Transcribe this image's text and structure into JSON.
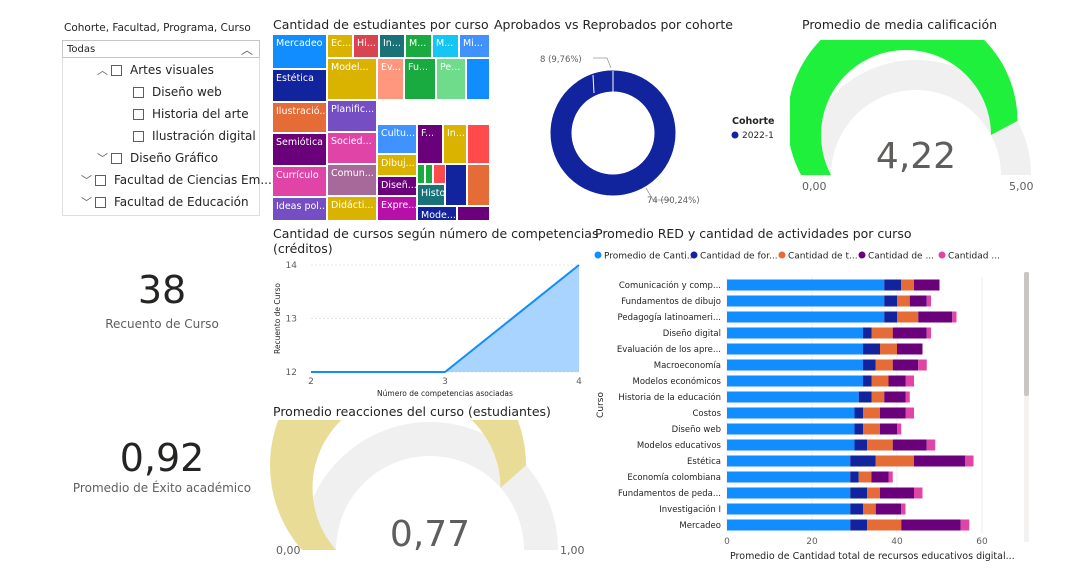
{
  "slicer": {
    "title": "Cohorte, Facultad, Programa, Curso",
    "selected": "Todas",
    "items": [
      {
        "label": "Artes visuales",
        "level": 2,
        "arrow": "^"
      },
      {
        "label": "Diseño web",
        "level": 3,
        "arrow": ""
      },
      {
        "label": "Historia del arte",
        "level": 3,
        "arrow": ""
      },
      {
        "label": "Ilustración digital",
        "level": 3,
        "arrow": ""
      },
      {
        "label": "Diseño Gráfico",
        "level": 2,
        "arrow": "v"
      },
      {
        "label": "Facultad de Ciencias Em...",
        "level": 1,
        "arrow": "v"
      },
      {
        "label": "Facultad de Educación",
        "level": 1,
        "arrow": "v"
      }
    ]
  },
  "cards": {
    "cursos": {
      "value": "38",
      "label": "Recuento de Curso"
    },
    "exito": {
      "value": "0,92",
      "label": "Promedio de Éxito académico"
    }
  },
  "treemap": {
    "title": "Cantidad de estudiantes por curso",
    "tiles": [
      {
        "label": "Mercadeo",
        "color": "#118DFF"
      },
      {
        "label": "Ec...",
        "color": "#D9B300"
      },
      {
        "label": "Hi...",
        "color": "#D64550"
      },
      {
        "label": "In...",
        "color": "#197278"
      },
      {
        "label": "M...",
        "color": "#1AAB40"
      },
      {
        "label": "M...",
        "color": "#15C6F4"
      },
      {
        "label": "Mi...",
        "color": "#4092FF"
      },
      {
        "label": "Estética",
        "color": "#12239E"
      },
      {
        "label": "Model...",
        "color": "#D9B300"
      },
      {
        "label": "Ev...",
        "color": "#FF977E"
      },
      {
        "label": "Fu...",
        "color": "#1AAB40"
      },
      {
        "label": "Pe...",
        "color": "#6FDC8C"
      },
      {
        "label": "",
        "color": "#118DFF"
      },
      {
        "label": "Ilustració...",
        "color": "#E66C37"
      },
      {
        "label": "Planific...",
        "color": "#744EC2"
      },
      {
        "label": "Semiótica",
        "color": "#6B007B"
      },
      {
        "label": "Socied...",
        "color": "#E044A7"
      },
      {
        "label": "Cultu...",
        "color": "#4092FF"
      },
      {
        "label": "F...",
        "color": "#6B007B"
      },
      {
        "label": "In...",
        "color": "#D9B300"
      },
      {
        "label": "",
        "color": "#FF4B4B"
      },
      {
        "label": "Currículo",
        "color": "#E044A7"
      },
      {
        "label": "Comun...",
        "color": "#A66999"
      },
      {
        "label": "Dibuj...",
        "color": "#D9B300"
      },
      {
        "label": "",
        "color": "#1AAB40"
      },
      {
        "label": "",
        "color": "#1AAB40"
      },
      {
        "label": "",
        "color": "#FF4B4B"
      },
      {
        "label": "Diseñ...",
        "color": "#6B007B"
      },
      {
        "label": "Histor...",
        "color": "#197278"
      },
      {
        "label": "",
        "color": "#12239E"
      },
      {
        "label": "",
        "color": "#E66C37"
      },
      {
        "label": "Ideas pol...",
        "color": "#744EC2"
      },
      {
        "label": "Didácti...",
        "color": "#D9B300"
      },
      {
        "label": "Expre...",
        "color": "#B80FA8"
      },
      {
        "label": "Mode...",
        "color": "#12239E"
      },
      {
        "label": "",
        "color": "#6B007B"
      }
    ]
  },
  "donut": {
    "title": "Aprobados vs Reprobados por cohorte",
    "legend_title": "Cohorte",
    "legend_item": "2022-1",
    "label_small": "8 (9,76%)",
    "label_large": "74 (90,24%)",
    "colors": {
      "main": "#12239E",
      "small": "#12239E"
    }
  },
  "gauge_calif": {
    "title": "Promedio de media calificación",
    "value": "4,22",
    "min": "0,00",
    "max": "5,00",
    "fraction": 0.844,
    "fill": "#1EF03C",
    "track": "#F0F0F0"
  },
  "line_chart": {
    "title_line1": "Cantidad de cursos según número de competencias",
    "title_line2": "(créditos)",
    "chart_data": {
      "type": "area",
      "x": [
        2,
        3,
        4
      ],
      "y": [
        12,
        12,
        14
      ],
      "xlabel": "Número de competencias asociadas",
      "ylabel": "Recuento de Curso",
      "xlim": [
        2,
        4
      ],
      "ylim": [
        12,
        14
      ],
      "yticks": [
        "12",
        "13",
        "14"
      ],
      "xticks": [
        "2",
        "3",
        "4"
      ],
      "color": "#118DFF"
    }
  },
  "gauge_reacciones": {
    "title": "Promedio reacciones del curso (estudiantes)",
    "value": "0,77",
    "min": "0,00",
    "max": "1,00",
    "fraction": 0.77,
    "fill": "#E8DC96",
    "track": "#F0F0F0"
  },
  "bar_chart": {
    "title": "Promedio RED y cantidad de actividades por curso",
    "legend": [
      {
        "label": "Promedio de Canti...",
        "color": "#118DFF"
      },
      {
        "label": "Cantidad de for...",
        "color": "#12239E"
      },
      {
        "label": "Cantidad de t...",
        "color": "#E66C37"
      },
      {
        "label": "Cantidad de ...",
        "color": "#6B007B"
      },
      {
        "label": "Cantidad ...",
        "color": "#E044A7"
      }
    ],
    "y_axis_label": "Curso",
    "x_axis_label": "Promedio de Cantidad total de recursos educativos digital...",
    "chart_data": {
      "type": "bar",
      "orientation": "horizontal-stacked",
      "categories": [
        "Comunicación y comp...",
        "Fundamentos de dibujo",
        "Pedagogía latinoameri...",
        "Diseño digital",
        "Evaluación de los apre...",
        "Macroeconomía",
        "Modelos económicos",
        "Historia de la educación",
        "Costos",
        "Diseño web",
        "Modelos educativos",
        "Estética",
        "Economía colombiana",
        "Fundamentos de peda...",
        "Investigación I",
        "Mercadeo"
      ],
      "series": [
        {
          "color": "#118DFF",
          "values": [
            37,
            37,
            37,
            32,
            32,
            32,
            32,
            31,
            30,
            30,
            30,
            29,
            29,
            29,
            29,
            29
          ]
        },
        {
          "color": "#12239E",
          "values": [
            4,
            3,
            3,
            2,
            4,
            3,
            2,
            3,
            2,
            2,
            3,
            6,
            2,
            4,
            3,
            4
          ]
        },
        {
          "color": "#E66C37",
          "values": [
            3,
            3,
            5,
            5,
            4,
            4,
            4,
            3,
            4,
            4,
            6,
            9,
            3,
            3,
            3,
            8
          ]
        },
        {
          "color": "#6B007B",
          "values": [
            6,
            4,
            8,
            8,
            6,
            6,
            4,
            5,
            6,
            4,
            8,
            12,
            4,
            8,
            6,
            14
          ]
        },
        {
          "color": "#E044A7",
          "values": [
            0,
            1,
            1,
            1,
            0,
            2,
            2,
            1,
            2,
            1,
            2,
            2,
            1,
            2,
            1,
            2
          ]
        }
      ],
      "xticks": [
        "0",
        "20",
        "40",
        "60"
      ],
      "xlim": [
        0,
        60
      ]
    }
  }
}
